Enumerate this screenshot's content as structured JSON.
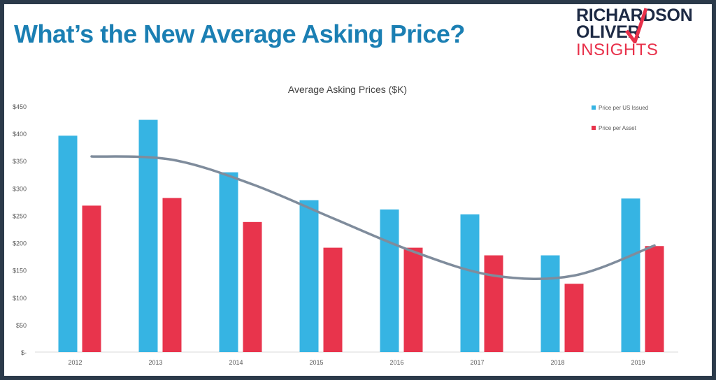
{
  "slide": {
    "title": "What’s the New Average Asking Price?",
    "logo": {
      "line1": "RICHARDSON",
      "line2": "OLIVER",
      "line3": "INSIGHTS"
    }
  },
  "colors": {
    "series1": "#36b4e3",
    "series2": "#e8344c",
    "trend": "#7f8c9c",
    "title": "#1b7fb3",
    "logo_dark": "#1d2a44",
    "logo_accent": "#e8304a"
  },
  "chart_data": {
    "type": "bar",
    "title": "Average Asking Prices ($K)",
    "categories": [
      "2012",
      "2013",
      "2014",
      "2015",
      "2016",
      "2017",
      "2018",
      "2019"
    ],
    "series": [
      {
        "name": "Price per US Issued",
        "values": [
          396,
          425,
          329,
          278,
          261,
          252,
          177,
          281
        ]
      },
      {
        "name": "Price per Asset",
        "values": [
          268,
          282,
          238,
          191,
          191,
          177,
          125,
          194
        ]
      }
    ],
    "trendline": {
      "type": "polynomial",
      "series": "Price per Asset",
      "x": [
        "2012",
        "2013",
        "2014",
        "2015",
        "2016",
        "2017",
        "2018",
        "2019"
      ],
      "values": [
        358,
        352,
        307,
        245,
        184,
        140,
        140,
        195
      ]
    },
    "yticks": [
      "$-",
      "$50",
      "$100",
      "$150",
      "$200",
      "$250",
      "$300",
      "$350",
      "$400",
      "$450"
    ],
    "ylim": [
      0,
      450
    ],
    "grid": false,
    "legend": "top-right"
  }
}
